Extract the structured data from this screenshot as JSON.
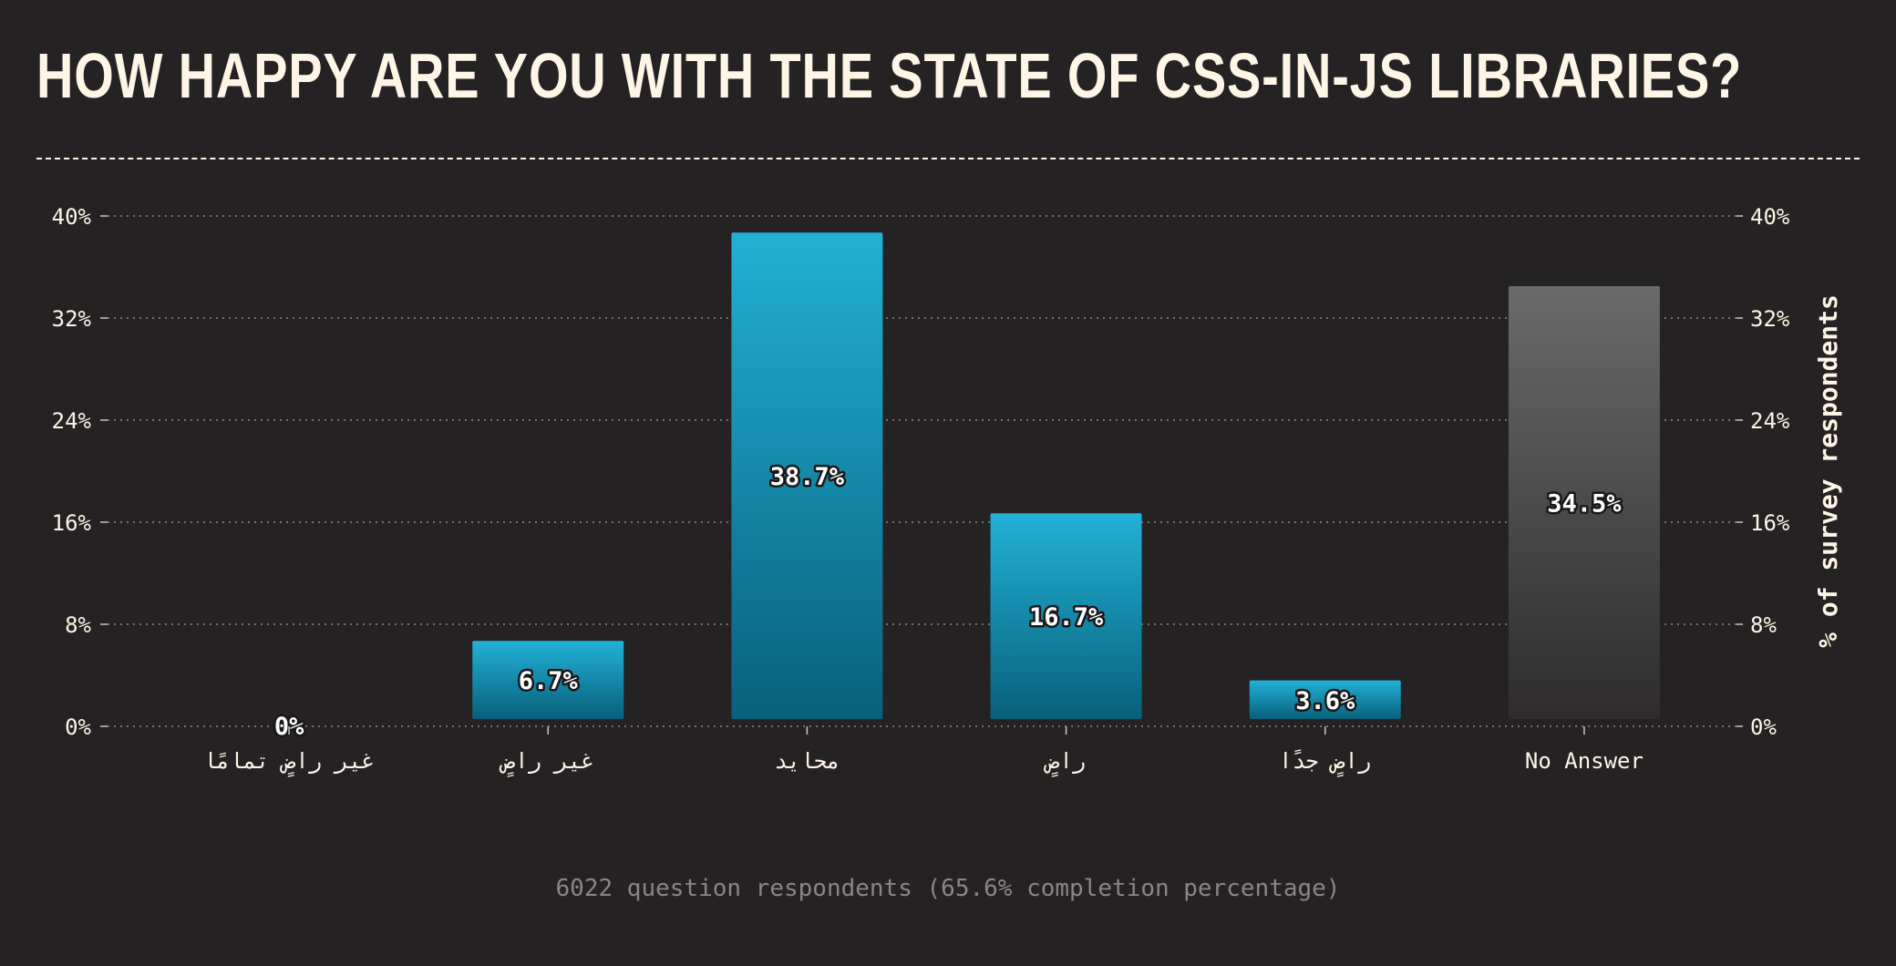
{
  "title": "HOW HAPPY ARE YOU WITH THE STATE OF CSS-IN-JS LIBRARIES?",
  "footer_text": "6022 question respondents (65.6% completion percentage)",
  "colors": {
    "background": "#252224",
    "title": "#fdf5e6",
    "bar_top": "#22b1d6",
    "bar_bottom": "#08607b",
    "no_answer_top": "#6a6a6a",
    "no_answer_bottom": "#2e2c2d",
    "axis_text": "#fdf5e6",
    "footer": "#8a8687"
  },
  "chart_data": {
    "type": "bar",
    "title": "HOW HAPPY ARE YOU WITH THE STATE OF CSS-IN-JS LIBRARIES?",
    "categories": [
      "غير راضٍ تمامًا",
      "غير راضٍ",
      "محايد",
      "راضٍ",
      "راضٍ جدًا",
      "No Answer"
    ],
    "values": [
      0,
      6.7,
      38.7,
      16.7,
      3.6,
      34.5
    ],
    "value_labels": [
      "0%",
      "6.7%",
      "38.7%",
      "16.7%",
      "3.6%",
      "34.5%"
    ],
    "highlight_no_answer": true,
    "ylim": [
      0,
      40
    ],
    "yticks": [
      0,
      8,
      16,
      24,
      32,
      40
    ],
    "ytick_labels": [
      "0%",
      "8%",
      "16%",
      "24%",
      "32%",
      "40%"
    ],
    "ylabel_right": "% of survey respondents",
    "xlabel": "",
    "grid": true
  }
}
